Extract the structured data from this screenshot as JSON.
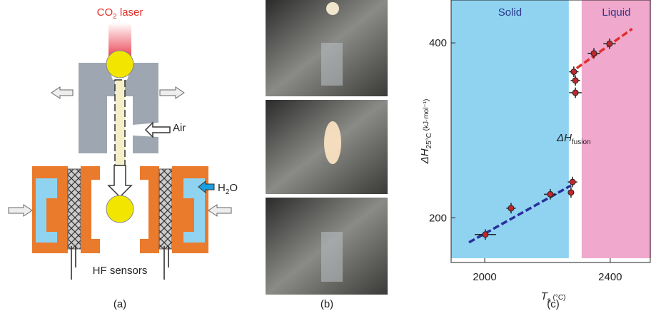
{
  "diagram": {
    "laser": [
      "CO",
      "2",
      " laser"
    ],
    "air": "Air",
    "water": [
      "H",
      "2",
      "O"
    ],
    "sensors": "HF sensors",
    "caption": "(a)"
  },
  "photos": {
    "caption": "(b)"
  },
  "chart_data": {
    "type": "scatter",
    "caption": "(c)",
    "x_label": [
      "T",
      "s",
      " (°C)"
    ],
    "y_label": [
      "ΔH",
      "25°C",
      " (kJ·mol⁻¹)"
    ],
    "annotation": [
      "ΔH",
      "fusion"
    ],
    "xlim": [
      1893,
      2530
    ],
    "ylim": [
      149,
      449
    ],
    "xticks": [
      2000,
      2400
    ],
    "yticks": [
      200,
      400
    ],
    "regions": [
      {
        "name": "Solid",
        "color": "#8fd3f1",
        "from": 1893,
        "to": 2268,
        "text_color": "#2a3a8c"
      },
      {
        "name": "Liquid",
        "color": "#f0a8cc",
        "from": 2309,
        "to": 2530,
        "text_color": "#2a3a8c"
      }
    ],
    "fits": [
      {
        "color": "#2a2f9a",
        "x": [
          1950,
          2275
        ],
        "y": [
          172,
          237
        ]
      },
      {
        "color": "#e0302c",
        "x": [
          2293,
          2470
        ],
        "y": [
          371,
          416
        ]
      }
    ],
    "series": [
      {
        "color": "#c0282e",
        "x": [
          2002,
          2084,
          2209,
          2275,
          2280,
          2398,
          2348,
          2284,
          2289,
          2289
        ],
        "y": [
          181,
          211,
          227,
          229,
          241,
          399,
          388,
          367,
          357,
          343
        ],
        "xerr": [
          34,
          15,
          20,
          10,
          15,
          20,
          20,
          15,
          15,
          20
        ],
        "yerr": [
          6,
          6,
          6,
          6,
          6,
          6,
          6,
          6,
          6,
          6
        ]
      }
    ]
  }
}
